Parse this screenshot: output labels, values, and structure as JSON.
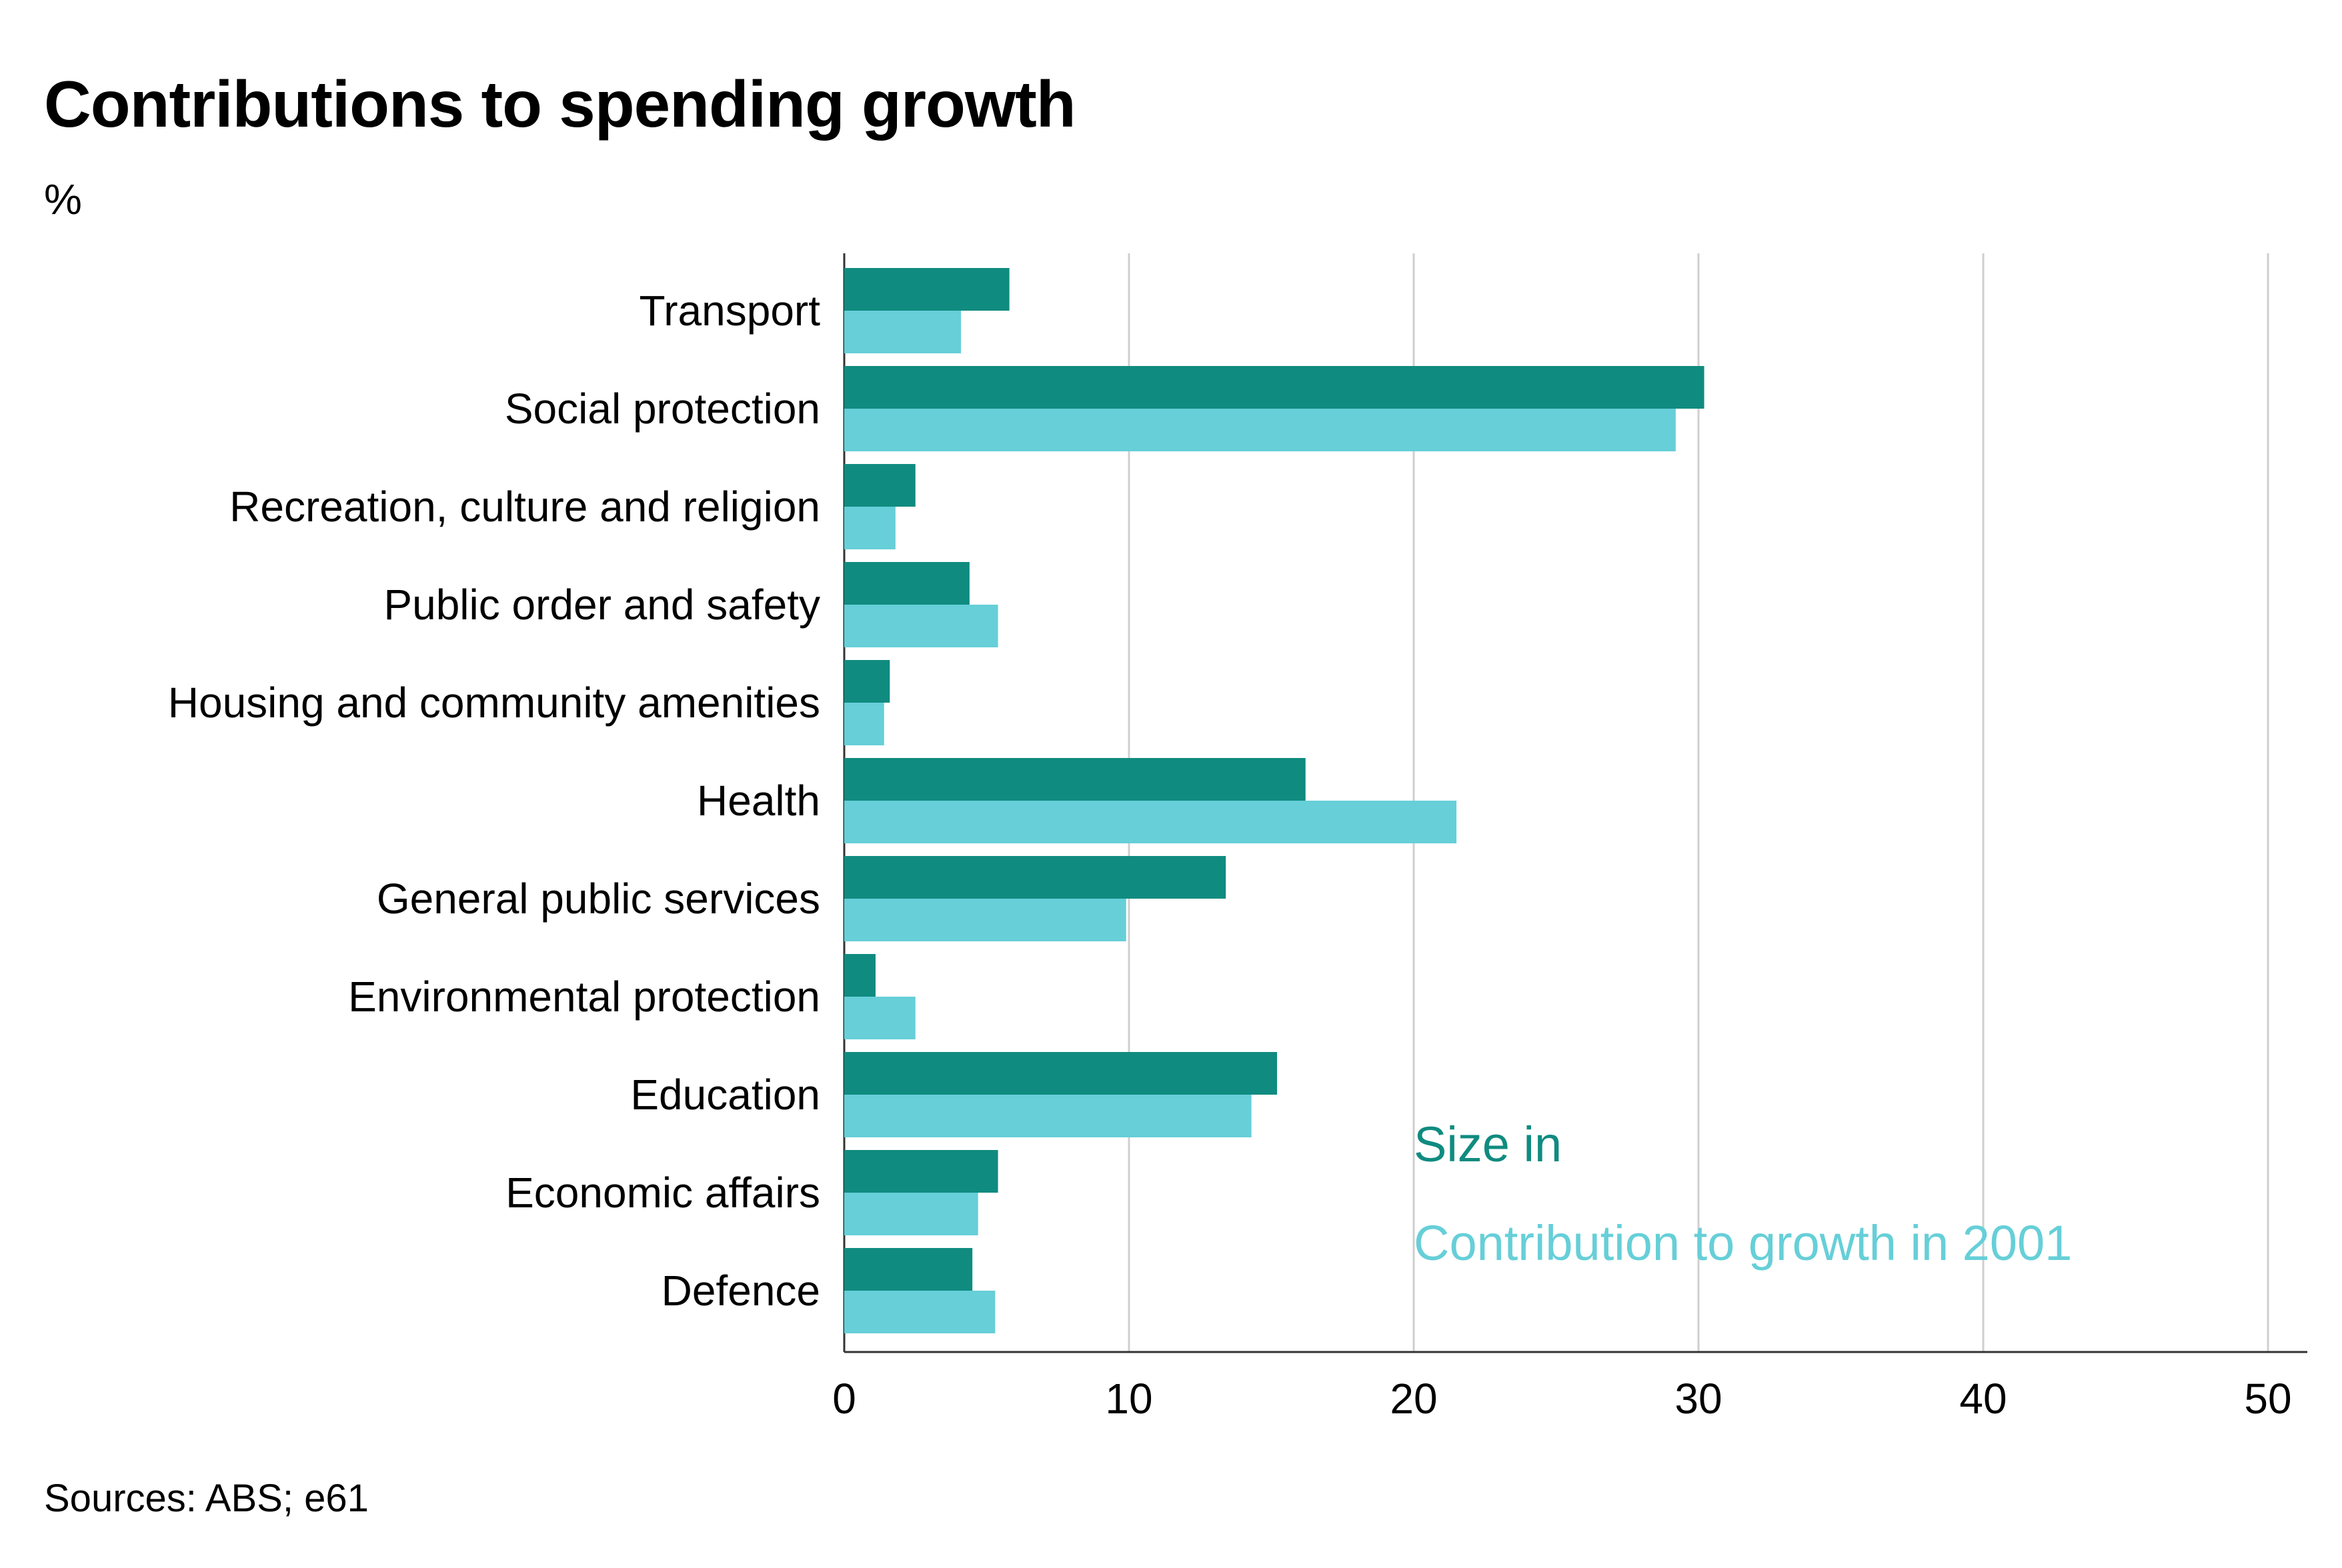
{
  "chart_data": {
    "type": "bar",
    "orientation": "horizontal",
    "title": "Contributions to spending growth",
    "subtitle": "%",
    "source": "Sources: ABS; e61",
    "categories": [
      "Transport",
      "Social protection",
      "Recreation, culture and religion",
      "Public order and safety",
      "Housing and community amenities",
      "Health",
      "General public services",
      "Environmental protection",
      "Education",
      "Economic affairs",
      "Defence"
    ],
    "series": [
      {
        "name": "Size in",
        "color": "#108b80",
        "values": [
          5.8,
          30.2,
          2.5,
          4.4,
          1.6,
          16.2,
          13.4,
          1.1,
          15.2,
          5.4,
          4.5
        ]
      },
      {
        "name": "Contribution to growth in 2001",
        "color": "#66cfd8",
        "values": [
          4.1,
          29.2,
          1.8,
          5.4,
          1.4,
          21.5,
          9.9,
          2.5,
          14.3,
          4.7,
          5.3
        ]
      }
    ],
    "xlim": [
      0,
      50
    ],
    "xticks": [
      0,
      10,
      20,
      30,
      40,
      50
    ],
    "grid": "vertical",
    "legend": "inside, lower-right"
  }
}
